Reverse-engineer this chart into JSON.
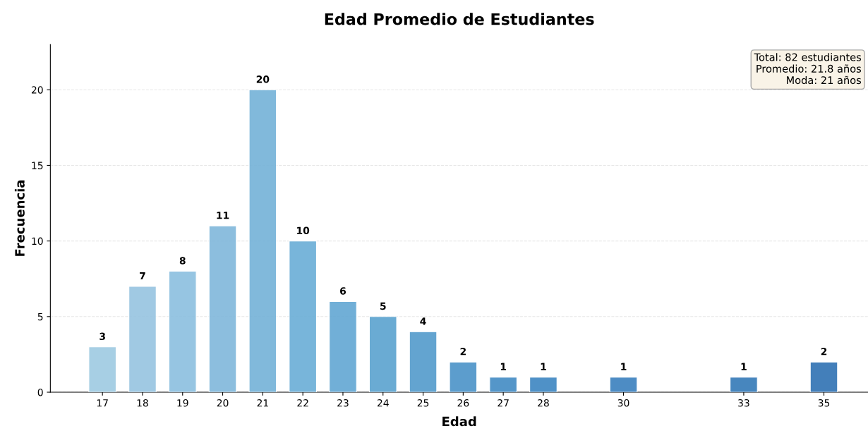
{
  "chart_data": {
    "type": "bar",
    "title": "Edad Promedio de Estudiantes",
    "xlabel": "Edad",
    "ylabel": "Frecuencia",
    "x": [
      17,
      18,
      19,
      20,
      21,
      22,
      23,
      24,
      25,
      26,
      27,
      28,
      30,
      33,
      35
    ],
    "values": [
      3,
      7,
      8,
      11,
      20,
      10,
      6,
      5,
      4,
      2,
      1,
      1,
      1,
      1,
      2
    ],
    "colors": [
      "#9ecae1",
      "#96c4e0",
      "#8bbfdf",
      "#80b7db",
      "#74b2d8",
      "#6aaed6",
      "#62a7d3",
      "#5aa2cf",
      "#539bcb",
      "#4b93c8",
      "#428bc4",
      "#3d86c1",
      "#3a80be",
      "#3479b8",
      "#2f72b3"
    ],
    "xlim": [
      15.7,
      36.1
    ],
    "xticks": [
      17,
      18,
      19,
      20,
      21,
      22,
      23,
      24,
      25,
      26,
      27,
      28,
      30,
      33,
      35
    ],
    "ylim": [
      0,
      23
    ],
    "yticks": [
      0,
      5,
      10,
      15,
      20
    ],
    "grid": "y",
    "data_labels": true,
    "legend": false,
    "annotations": [
      "Total: 82 estudiantes\nPromedio: 21.8 años\nModa: 21 años"
    ]
  }
}
